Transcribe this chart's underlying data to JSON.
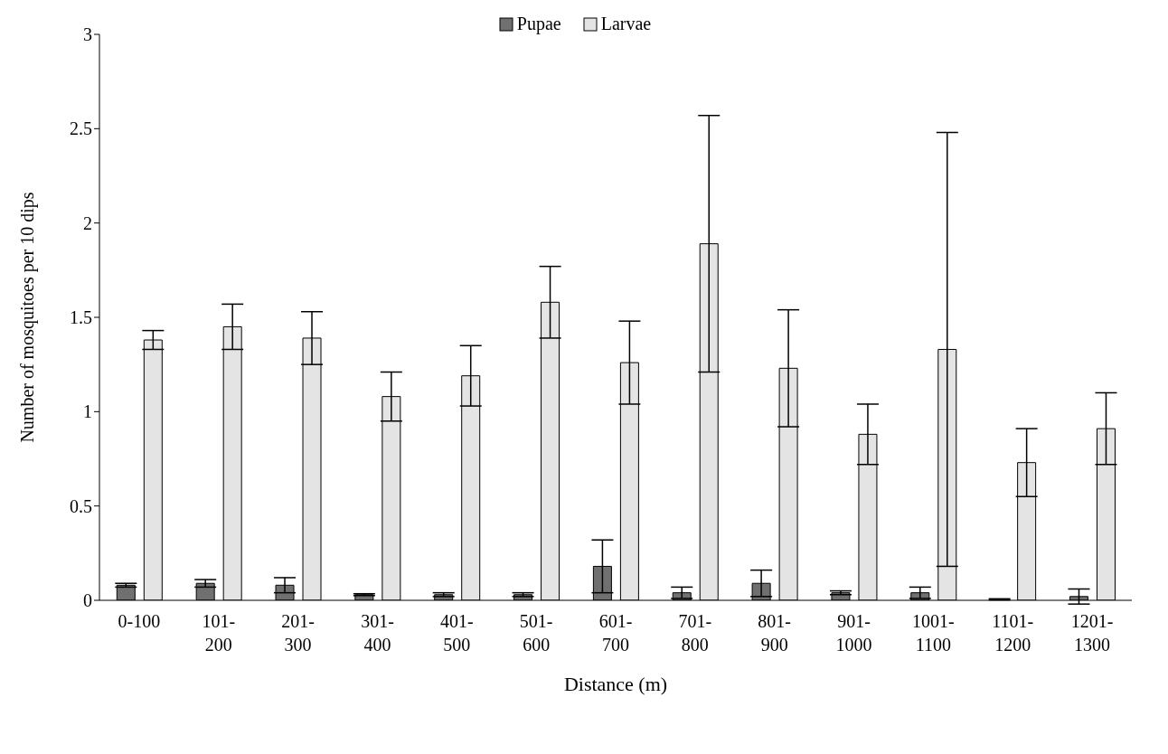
{
  "chart_data": {
    "type": "bar",
    "xlabel": "Distance (m)",
    "ylabel": "Number of mosquitoes per 10 dips",
    "categories": [
      "0-100",
      "101-200",
      "201-300",
      "301-400",
      "401-500",
      "501-600",
      "601-700",
      "701-800",
      "801-900",
      "901-1000",
      "1001-1100",
      "1101-1200",
      "1201-1300"
    ],
    "series": [
      {
        "name": "Pupae",
        "color": "#707070",
        "values": [
          0.08,
          0.09,
          0.08,
          0.03,
          0.03,
          0.03,
          0.18,
          0.04,
          0.09,
          0.04,
          0.04,
          0.005,
          0.02
        ],
        "errors": [
          0.01,
          0.02,
          0.04,
          0.005,
          0.01,
          0.01,
          0.14,
          0.03,
          0.07,
          0.01,
          0.03,
          0.003,
          0.04
        ]
      },
      {
        "name": "Larvae",
        "color": "#e4e4e4",
        "values": [
          1.38,
          1.45,
          1.39,
          1.08,
          1.19,
          1.58,
          1.26,
          1.89,
          1.23,
          0.88,
          1.33,
          0.73,
          0.91
        ],
        "errors": [
          0.05,
          0.12,
          0.14,
          0.13,
          0.16,
          0.19,
          0.22,
          0.68,
          0.31,
          0.16,
          1.15,
          0.18,
          0.19
        ]
      }
    ],
    "ylim": [
      0,
      3
    ],
    "yticks": [
      0,
      0.5,
      1,
      1.5,
      2,
      2.5,
      3
    ],
    "grid": false,
    "legend": "top"
  }
}
